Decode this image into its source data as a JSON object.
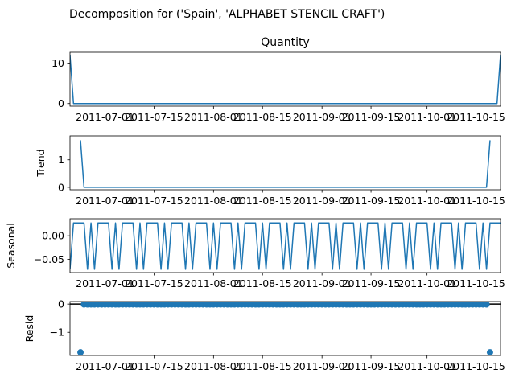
{
  "figure_title": "Decomposition for ('Spain', 'ALPHABET STENCIL CRAFT')",
  "chart_data": [
    {
      "type": "line",
      "title": "Quantity",
      "xlabel": "",
      "ylabel": "",
      "xlim": [
        "2011-06-21",
        "2011-10-22"
      ],
      "ylim": [
        -0.65,
        12.7
      ],
      "yticks": [
        0,
        10
      ],
      "xticks": [
        "2011-07-01",
        "2011-07-15",
        "2011-08-01",
        "2011-08-15",
        "2011-09-01",
        "2011-09-15",
        "2011-10-01",
        "2011-10-15"
      ],
      "x": [
        "2011-06-21",
        "2011-06-22",
        "2011-10-21",
        "2011-10-22"
      ],
      "values": [
        12,
        0,
        0,
        12
      ]
    },
    {
      "type": "line",
      "title": "",
      "xlabel": "",
      "ylabel": "Trend",
      "xlim": [
        "2011-06-21",
        "2011-10-22"
      ],
      "ylim": [
        -0.09,
        1.87
      ],
      "yticks": [
        0,
        1
      ],
      "xticks": [
        "2011-07-01",
        "2011-07-15",
        "2011-08-01",
        "2011-08-15",
        "2011-09-01",
        "2011-09-15",
        "2011-10-01",
        "2011-10-15"
      ],
      "x": [
        "2011-06-24",
        "2011-06-25",
        "2011-10-18",
        "2011-10-19"
      ],
      "values": [
        1.71,
        0,
        0,
        1.71
      ]
    },
    {
      "type": "line",
      "title": "",
      "xlabel": "",
      "ylabel": "Seasonal",
      "xlim": [
        "2011-06-21",
        "2011-10-22"
      ],
      "ylim": [
        -0.078,
        0.036
      ],
      "yticks": [
        0,
        -0.05
      ],
      "ytick_labels": [
        "0.00",
        "−0.05"
      ],
      "xticks": [
        "2011-07-01",
        "2011-07-15",
        "2011-08-01",
        "2011-08-15",
        "2011-09-01",
        "2011-09-15",
        "2011-10-01",
        "2011-10-15"
      ],
      "start": "2011-06-21",
      "pattern": [
        -0.071,
        0.027,
        0.027,
        0.027,
        0.027,
        -0.071,
        0.027
      ],
      "n_points": 124
    },
    {
      "type": "scatter",
      "title": "",
      "xlabel": "",
      "ylabel": "Resid",
      "xlim": [
        "2011-06-21",
        "2011-10-22"
      ],
      "ylim": [
        -1.82,
        0.09
      ],
      "yticks": [
        0,
        -1
      ],
      "ytick_labels": [
        "0",
        "−1"
      ],
      "xticks": [
        "2011-07-01",
        "2011-07-15",
        "2011-08-01",
        "2011-08-15",
        "2011-09-01",
        "2011-09-15",
        "2011-10-01",
        "2011-10-15"
      ],
      "zero_line": true,
      "x_range": [
        "2011-06-24",
        "2011-10-19"
      ],
      "baseline": -0.01,
      "outliers": [
        {
          "x": "2011-06-24",
          "y": -1.71
        },
        {
          "x": "2011-10-19",
          "y": -1.71
        }
      ]
    }
  ],
  "colors": {
    "series": "#1f77b4",
    "axis": "#000000"
  }
}
